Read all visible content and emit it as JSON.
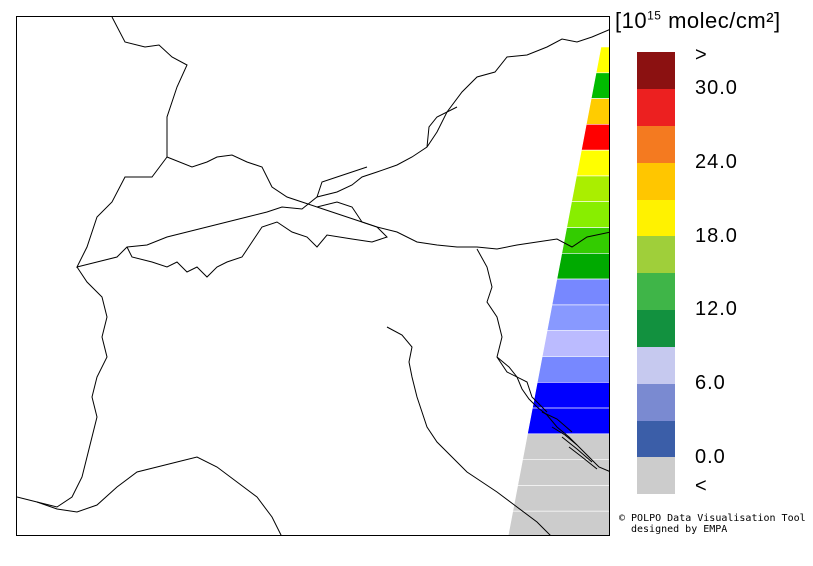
{
  "legend": {
    "unit_prefix": "[10",
    "unit_exponent": "15",
    "unit_suffix": " molec/cm²]",
    "colors": [
      "#cccccc",
      "#3b5ea8",
      "#7a8ad1",
      "#c6c9ef",
      "#12913f",
      "#3fb548",
      "#9fcf3a",
      "#fff200",
      "#ffc600",
      "#f47a20",
      "#ec2020",
      "#8b1111"
    ],
    "labels": [
      ">",
      "30.0",
      "24.0",
      "18.0",
      "12.0",
      "6.0",
      "0.0",
      "<"
    ]
  },
  "credit": {
    "line1": "© POLPO Data Visualisation Tool",
    "line2": "designed by EMPA"
  },
  "swath_colors": [
    "#ffff00",
    "#00bb00",
    "#ffcc00",
    "#ff0000",
    "#ffff00",
    "#aaee00",
    "#88ee00",
    "#33cc00",
    "#00aa00",
    "#7788ff",
    "#8899ff",
    "#bbbbff",
    "#7788ff",
    "#0000ff",
    "#0000ff",
    "#cccccc",
    "#cccccc",
    "#cccccc",
    "#cccccc"
  ]
}
